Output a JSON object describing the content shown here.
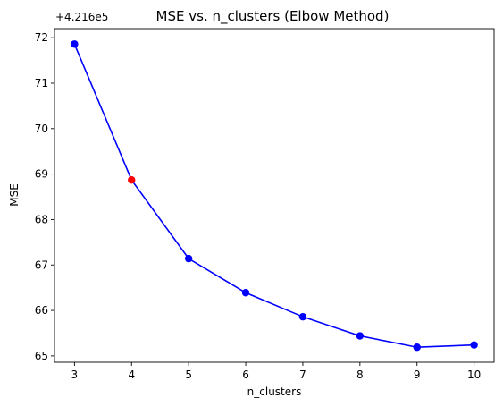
{
  "chart_data": {
    "type": "line",
    "title": "MSE vs. n_clusters (Elbow Method)",
    "xlabel": "n_clusters",
    "ylabel": "MSE",
    "y_offset_label": "+4.216e5",
    "x": [
      3,
      4,
      5,
      6,
      7,
      8,
      9,
      10
    ],
    "series": [
      {
        "values": [
          71.86,
          68.87,
          67.14,
          66.39,
          65.86,
          65.44,
          65.19,
          65.24
        ],
        "color": "#0000ff",
        "highlight_index": 1,
        "highlight_color": "#ff0000"
      }
    ],
    "xlim": [
      2.65,
      10.35
    ],
    "ylim": [
      64.86,
      72.2
    ],
    "xticks": [
      3,
      4,
      5,
      6,
      7,
      8,
      9,
      10
    ],
    "yticks": [
      65,
      66,
      67,
      68,
      69,
      70,
      71,
      72
    ],
    "grid": false,
    "legend": "none"
  }
}
